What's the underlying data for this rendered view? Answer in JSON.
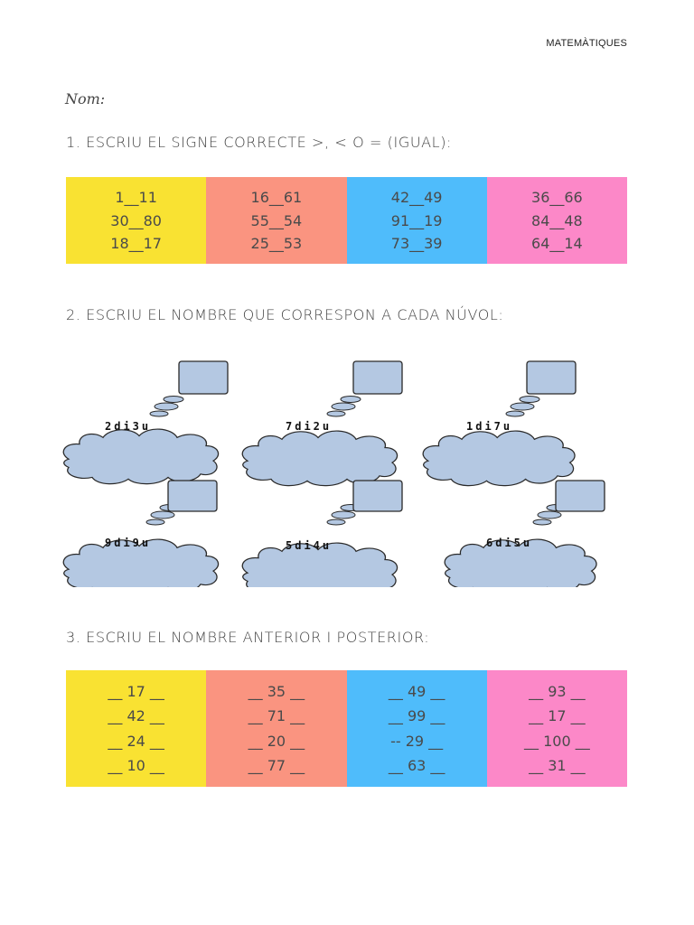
{
  "header": {
    "subject": "MATEMÀTIQUES"
  },
  "nom_label": "Nom:",
  "exercise1": {
    "title": "1. ESCRIU EL SIGNE CORRECTE >, < O = (IGUAL):",
    "columns": [
      {
        "color": "#f9e232",
        "cells": [
          "1__11",
          "30__80",
          "18__17"
        ]
      },
      {
        "color": "#fa9480",
        "cells": [
          "16__61",
          "55__54",
          "25__53"
        ]
      },
      {
        "color": "#4fbcfb",
        "cells": [
          "42__49",
          "91__19",
          "73__39"
        ]
      },
      {
        "color": "#fc88c8",
        "cells": [
          "36__66",
          "84__48",
          "64__14"
        ]
      }
    ]
  },
  "exercise2": {
    "title": "2. ESCRIU EL NOMBRE QUE CORRESPON A CADA NÚVOL:",
    "clouds": [
      "2di3u",
      "7di2u",
      "1di7u",
      "9di9u",
      "5di4u",
      "6di5u"
    ],
    "cloud_color": "#b4c8e2"
  },
  "exercise3": {
    "title": "3. ESCRIU EL NOMBRE ANTERIOR I POSTERIOR:",
    "columns": [
      {
        "color": "#f9e232",
        "cells": [
          "__ 17 __",
          "__ 42 __",
          "__ 24 __",
          "__ 10 __"
        ]
      },
      {
        "color": "#fa9480",
        "cells": [
          "__ 35 __",
          "__ 71 __",
          "__ 20 __",
          "__ 77 __"
        ]
      },
      {
        "color": "#4fbcfb",
        "cells": [
          "__ 49 __",
          "__ 99 __",
          "-- 29 __",
          "__ 63 __"
        ]
      },
      {
        "color": "#fc88c8",
        "cells": [
          "__ 93 __",
          "__ 17 __",
          "__ 100 __",
          "__ 31 __"
        ]
      }
    ]
  }
}
